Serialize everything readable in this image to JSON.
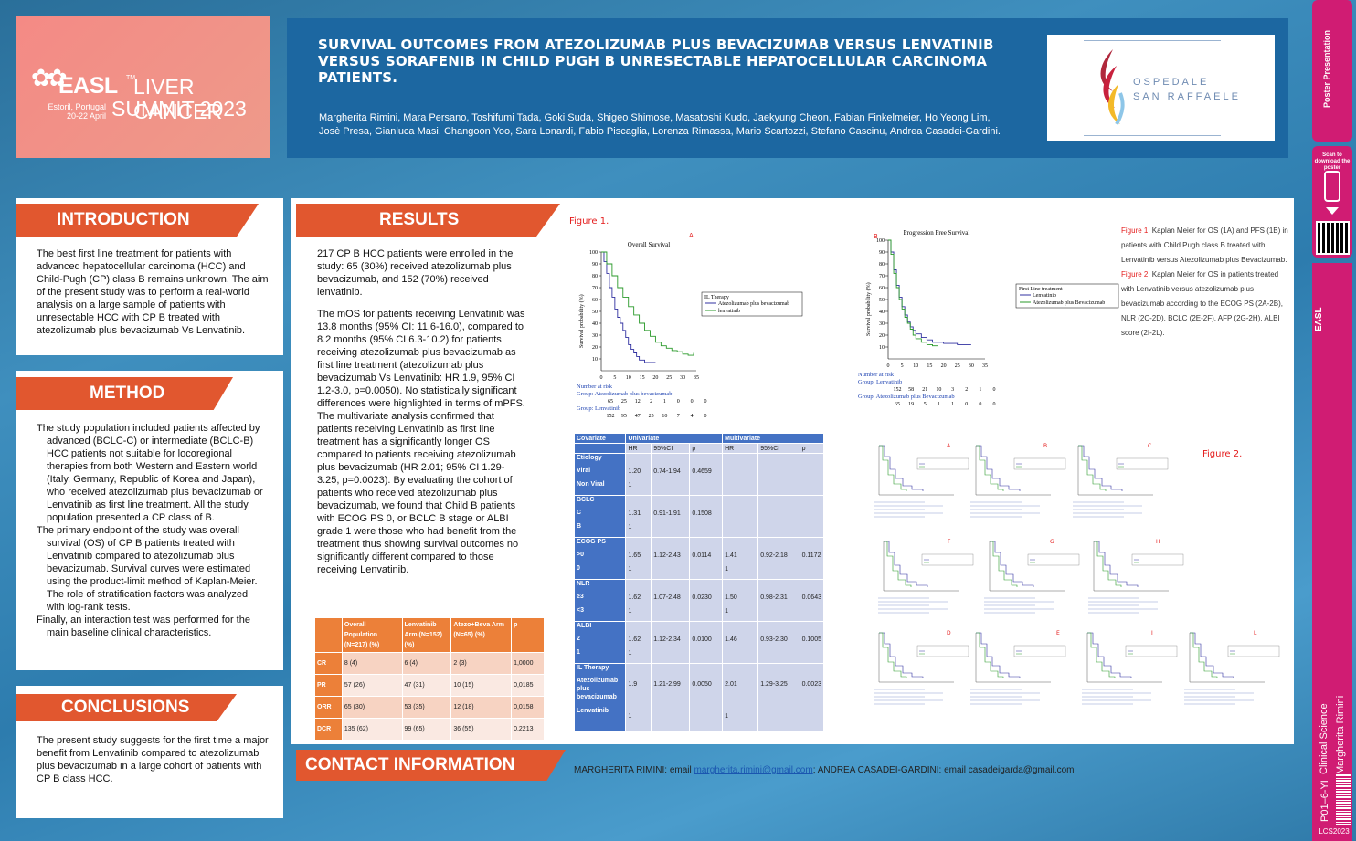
{
  "header": {
    "logo": {
      "easl": "EASL",
      "tm": "TM",
      "event": "LIVER CANCER",
      "summit": "SUMMIT 2023",
      "place": "Estoril, Portugal",
      "dates": "20-22 April"
    },
    "title": "SURVIVAL OUTCOMES FROM ATEZOLIZUMAB PLUS BEVACIZUMAB VERSUS LENVATINIB VERSUS SORAFENIB IN CHILD PUGH B UNRESECTABLE HEPATOCELLULAR CARCINOMA PATIENTS.",
    "authors": "Margherita Rimini, Mara Persano, Toshifumi Tada, Goki Suda, Shigeo Shimose, Masatoshi Kudo, Jaekyung Cheon, Fabian Finkelmeier, Ho Yeong Lim, Josè Presa, Gianluca Masi, Changoon Yoo, Sara Lonardi, Fabio Piscaglia, Lorenza Rimassa, Mario Scartozzi, Stefano Cascinu, Andrea Casadei-Gardini.",
    "hospital_line1": "OSPEDALE",
    "hospital_line2": "SAN RAFFAELE"
  },
  "sidebar": {
    "poster": "Poster Presentation",
    "scan": "Scan to download the poster",
    "easl": "EASL",
    "category": "Clinical Science",
    "presenter": "Margherita Rimini",
    "code": "P01–6-YI",
    "footer": "LCS2023"
  },
  "introduction": {
    "heading": "INTRODUCTION",
    "text": "The best first line treatment for patients with advanced hepatocellular carcinoma (HCC) and Child-Pugh (CP) class B remains unknown. The aim of the present study was to perform a real-world analysis on a large sample of patients with unresectable HCC with CP B treated with atezolizumab plus bevacizumab Vs Lenvatinib."
  },
  "method": {
    "heading": "METHOD",
    "items": [
      "The study population included patients affected by advanced (BCLC-C) or intermediate (BCLC-B) HCC patients not suitable for locoregional therapies from both Western and Eastern world (Italy, Germany, Republic of Korea and Japan), who received atezolizumab plus bevacizumab or Lenvatinib as first line treatment. All the study population presented a CP class of B.",
      "The primary endpoint of the study was overall survival (OS) of CP B patients treated with Lenvatinib compared to atezolizumab plus bevacizumab. Survival curves were estimated using the product-limit method of Kaplan-Meier. The role of stratification factors was analyzed with log-rank tests.",
      "Finally, an interaction test was performed for the main baseline clinical characteristics."
    ]
  },
  "conclusions": {
    "heading": "CONCLUSIONS",
    "text": "The present study suggests for the first time a major benefit from Lenvatinib compared to atezolizumab plus bevacizumab in a large cohort of patients with CP B class HCC."
  },
  "results": {
    "heading": "RESULTS",
    "p1": "217 CP B HCC patients were enrolled in the study: 65 (30%) received atezolizumab plus bevacizumab, and 152 (70%) received lenvatinib.",
    "p2": "The mOS for patients receiving Lenvatinib was 13.8 months (95% CI: 11.6-16.0), compared to 8.2 months (95% CI 6.3-10.2) for patients receiving atezolizumab plus bevacizumab as first line treatment (atezolizumab plus bevacizumab Vs Lenvatinib: HR 1.9, 95% CI 1.2-3.0, p=0.0050).  No statistically significant differences were highlighted in terms of mPFS. The multivariate analysis confirmed that patients receiving Lenvatinib as first line treatment has a significantly longer OS compared to patients receiving atezolizumab plus bevacizumab (HR 2.01; 95% CI 1.29-3.25, p=0.0023). By evaluating the cohort of patients who received atezolizumab plus bevacizumab, we found that Child B patients with ECOG PS 0, or BCLC B stage or ALBI grade 1 were those who had benefit from the treatment thus showing survival outcomes no significantly different compared to those receiving Lenvatinib.",
    "response_table": {
      "headers": [
        "",
        "Overall Population (N=217) (%)",
        "Lenvatinib Arm (N=152) (%)",
        "Atezo+Beva Arm (N=65) (%)",
        "p"
      ],
      "rows": [
        [
          "CR",
          "8 (4)",
          "6 (4)",
          "2 (3)",
          "1,0000"
        ],
        [
          "PR",
          "57 (26)",
          "47 (31)",
          "10 (15)",
          "0,0185"
        ],
        [
          "ORR",
          "65 (30)",
          "53 (35)",
          "12 (18)",
          "0,0158"
        ],
        [
          "DCR",
          "135 (62)",
          "99 (65)",
          "36 (55)",
          "0,2213"
        ]
      ]
    }
  },
  "figure1": {
    "label": "Figure 1.",
    "panel_a": "A",
    "panel_b": "B",
    "caption1_label": "Figure 1.",
    "caption1": " Kaplan Meier for OS (1A) and PFS (1B) in patients with Child Pugh class B treated with Lenvatinib versus Atezolizumab plus Bevacizumab.",
    "caption2_label": "Figure 2.",
    "caption2": " Kaplan Meier for OS in patients treated with Lenvatinib versus atezolizumab plus bevacizumab according to the ECOG PS (2A-2B), NLR (2C-2D), BCLC (2E-2F), AFP (2G-2H), ALBI score (2I-2L)."
  },
  "figure2": {
    "label": "Figure 2.",
    "panels": [
      "A",
      "B",
      "C",
      "F",
      "G",
      "H",
      "D",
      "E",
      "I",
      "L"
    ]
  },
  "chart_data": [
    {
      "type": "line",
      "title": "Overall Survival",
      "xlabel": "",
      "ylabel": "Survival probability (%)",
      "xlim": [
        0,
        35
      ],
      "ylim": [
        0,
        100
      ],
      "x_ticks": [
        0,
        5,
        10,
        15,
        20,
        25,
        30,
        35
      ],
      "y_ticks": [
        10,
        20,
        30,
        40,
        50,
        60,
        70,
        80,
        90,
        100
      ],
      "legend_title": "IL Therapy",
      "legend_position": "right",
      "series": [
        {
          "name": "Atezolizumab plus bevacizumab",
          "color": "#3030a0",
          "x": [
            0,
            1,
            2,
            3,
            4,
            5,
            6,
            7,
            8,
            9,
            10,
            11,
            12,
            13,
            14,
            16,
            20
          ],
          "y": [
            100,
            92,
            82,
            70,
            62,
            52,
            45,
            40,
            34,
            28,
            22,
            18,
            15,
            12,
            9,
            7,
            7
          ]
        },
        {
          "name": "lenvatinib",
          "color": "#2a9a2a",
          "x": [
            0,
            2,
            4,
            6,
            8,
            10,
            12,
            14,
            16,
            18,
            20,
            22,
            24,
            26,
            28,
            30,
            32,
            34
          ],
          "y": [
            100,
            90,
            80,
            70,
            62,
            54,
            47,
            40,
            34,
            29,
            24,
            21,
            19,
            17,
            16,
            14,
            13,
            15
          ]
        }
      ],
      "risk_table": {
        "heading": "Number at risk",
        "group1_label": "Group: Atezolizumab plus bevacizumab",
        "group1": [
          "65",
          "25",
          "12",
          "2",
          "1",
          "0",
          "0",
          "0"
        ],
        "group2_label": "Group: Lenvatinib",
        "group2": [
          "152",
          "95",
          "47",
          "25",
          "10",
          "7",
          "4",
          "0"
        ]
      }
    },
    {
      "type": "line",
      "title": "Progression Free Survival",
      "xlabel": "",
      "ylabel": "Survival probability (%)",
      "xlim": [
        0,
        35
      ],
      "ylim": [
        0,
        100
      ],
      "x_ticks": [
        0,
        5,
        10,
        15,
        20,
        25,
        30,
        35
      ],
      "y_ticks": [
        10,
        20,
        30,
        40,
        50,
        60,
        70,
        80,
        90,
        100
      ],
      "legend_title": "First Line treatment",
      "legend_position": "right",
      "series": [
        {
          "name": "Lenvatinib",
          "color": "#3030a0",
          "x": [
            0,
            1,
            2,
            3,
            4,
            5,
            6,
            7,
            8,
            9,
            10,
            12,
            14,
            16,
            20,
            25,
            28,
            30
          ],
          "y": [
            100,
            90,
            75,
            62,
            52,
            44,
            37,
            31,
            27,
            24,
            21,
            18,
            16,
            14,
            13,
            12,
            12,
            12
          ]
        },
        {
          "name": "Atezolizumab plus Bevacizumab",
          "color": "#2a9a2a",
          "x": [
            0,
            1,
            2,
            3,
            4,
            5,
            6,
            7,
            8,
            9,
            10,
            12,
            14,
            16,
            18
          ],
          "y": [
            100,
            88,
            72,
            60,
            50,
            42,
            35,
            30,
            25,
            20,
            17,
            14,
            12,
            11,
            11
          ]
        }
      ],
      "risk_table": {
        "heading": "Number at risk",
        "group1_label": "Group: Lenvatinib",
        "group1": [
          "152",
          "58",
          "21",
          "10",
          "3",
          "2",
          "1",
          "0"
        ],
        "group2_label": "Group: Atezolizumab plus Bevacizumab",
        "group2": [
          "65",
          "19",
          "5",
          "1",
          "1",
          "0",
          "0",
          "0"
        ]
      }
    }
  ],
  "multivariate_table": {
    "header1": [
      "Covariate",
      "Univariate",
      "",
      "",
      "Multivariate",
      "",
      ""
    ],
    "header2": [
      "",
      "HR",
      "95%CI",
      "p",
      "HR",
      "95%CI",
      "p"
    ],
    "rows": [
      {
        "label": "Etiology",
        "sub": [
          "Viral",
          "Non Viral"
        ],
        "hr": "1.20",
        "ref": "1",
        "ci": "0.74-1.94",
        "p": "0.4659",
        "mhr": "",
        "mref": "",
        "mci": "",
        "mp": ""
      },
      {
        "label": "BCLC",
        "sub": [
          "C",
          "B"
        ],
        "hr": "1.31",
        "ref": "1",
        "ci": "0.91-1.91",
        "p": "0.1508",
        "mhr": "",
        "mref": "",
        "mci": "",
        "mp": ""
      },
      {
        "label": "ECOG PS",
        "sub": [
          ">0",
          "0"
        ],
        "hr": "1.65",
        "ref": "1",
        "ci": "1.12-2.43",
        "p": "0.0114",
        "mhr": "1.41",
        "mref": "1",
        "mci": "0.92-2.18",
        "mp": "0.1172"
      },
      {
        "label": "NLR",
        "sub": [
          "≥3",
          "<3"
        ],
        "hr": "1.62",
        "ref": "1",
        "ci": "1.07-2.48",
        "p": "0.0230",
        "mhr": "1.50",
        "mref": "1",
        "mci": "0.98-2.31",
        "mp": "0.0643"
      },
      {
        "label": "ALBI",
        "sub": [
          "2",
          "1"
        ],
        "hr": "1.62",
        "ref": "1",
        "ci": "1.12-2.34",
        "p": "0.0100",
        "mhr": "1.46",
        "mref": "",
        "mci": "0.93-2.30",
        "mp": "0.1005"
      },
      {
        "label": "IL Therapy",
        "sub": [
          "Atezolizumab plus bevacizumab",
          "Lenvatinib"
        ],
        "hr": "1.9",
        "ref": "1",
        "ci": "1.21-2.99",
        "p": "0.0050",
        "mhr": "2.01",
        "mref": "1",
        "mci": "1.29-3.25",
        "mp": "0.0023"
      }
    ]
  },
  "contact": {
    "heading": "CONTACT INFORMATION",
    "prefix1": "MARGHERITA RIMINI: email ",
    "email1": "margherita.rimini@gmail.com",
    "sep": ";   ",
    "text2": "ANDREA CASADEI-GARDINI: email casadeigarda@gmail.com"
  },
  "colors": {
    "orange": "#e1572f",
    "blue": "#1c67a1",
    "magenta": "#d01c73",
    "tableBlue": "#4472c4",
    "tableOrange": "#ec8039"
  }
}
